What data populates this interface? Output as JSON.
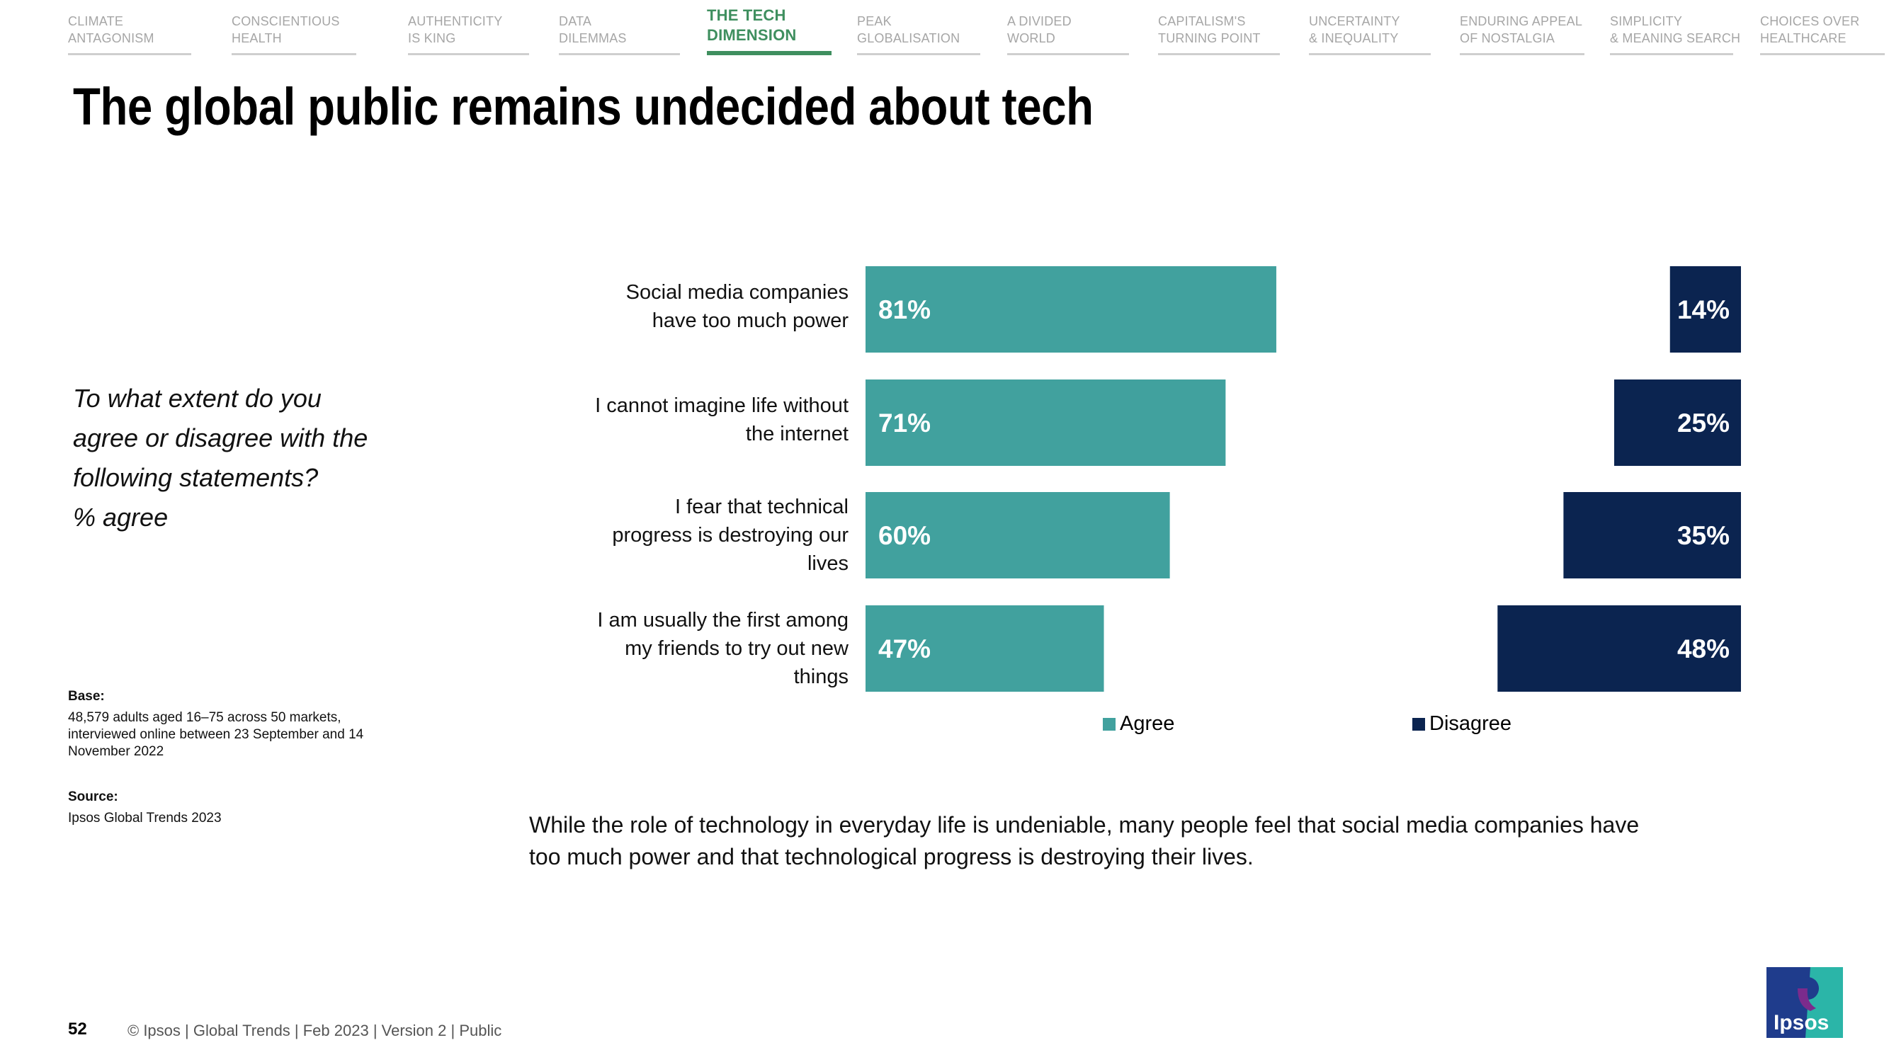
{
  "nav": {
    "tabs": [
      {
        "line1": "Climate",
        "line2": "Antagonism",
        "active": false
      },
      {
        "line1": "Conscientious",
        "line2": "Health",
        "active": false
      },
      {
        "line1": "Authenticity",
        "line2": "is King",
        "active": false
      },
      {
        "line1": "Data",
        "line2": "Dilemmas",
        "active": false
      },
      {
        "line1": "The Tech",
        "line2": "Dimension",
        "active": true
      },
      {
        "line1": "Peak",
        "line2": "Globalisation",
        "active": false
      },
      {
        "line1": "A Divided",
        "line2": "World",
        "active": false
      },
      {
        "line1": "Capitalism's",
        "line2": "Turning Point",
        "active": false
      },
      {
        "line1": "Uncertainty",
        "line2": "& Inequality",
        "active": false
      },
      {
        "line1": "Enduring Appeal",
        "line2": "of Nostalgia",
        "active": false
      },
      {
        "line1": "Simplicity",
        "line2": "& Meaning Search",
        "active": false
      },
      {
        "line1": "Choices Over",
        "line2": "Healthcare",
        "active": false
      }
    ]
  },
  "title": "The global public remains undecided about tech",
  "question": [
    "To what extent do you",
    "agree or disagree with the",
    "following statements?",
    "% agree"
  ],
  "base": {
    "heading": "Base:",
    "text": "48,579 adults aged 16–75 across 50 markets, interviewed online between 23 September and 14 November 2022"
  },
  "source": {
    "heading": "Source:",
    "text": "Ipsos Global Trends 2023"
  },
  "caption": "While the role of technology in everyday life is undeniable, many people feel that social media companies have too much power and that technological progress is destroying their lives.",
  "footer": {
    "page_number": "52",
    "text": "© Ipsos | Global Trends | Feb 2023 | Version 2 | Public"
  },
  "logo": {
    "text": "Ipsos"
  },
  "colors": {
    "agree": "#41a19e",
    "disagree": "#0b2450",
    "accent": "#3f8f5f"
  },
  "chart_data": {
    "type": "bar",
    "orientation": "horizontal",
    "stacked": false,
    "categories": [
      [
        "Social media companies",
        "have too much power"
      ],
      [
        "I cannot imagine life without",
        "the internet"
      ],
      [
        "I fear that technical",
        "progress is destroying our",
        "lives"
      ],
      [
        "I am usually the first among",
        "my friends to try out new",
        "things"
      ]
    ],
    "series": [
      {
        "name": "Agree",
        "values": [
          81,
          71,
          60,
          47
        ]
      },
      {
        "name": "Disagree",
        "values": [
          14,
          25,
          35,
          48
        ]
      }
    ],
    "value_suffix": "%",
    "legend": [
      "Agree",
      "Disagree"
    ],
    "legend_position": "bottom",
    "xlim": [
      0,
      100
    ]
  }
}
